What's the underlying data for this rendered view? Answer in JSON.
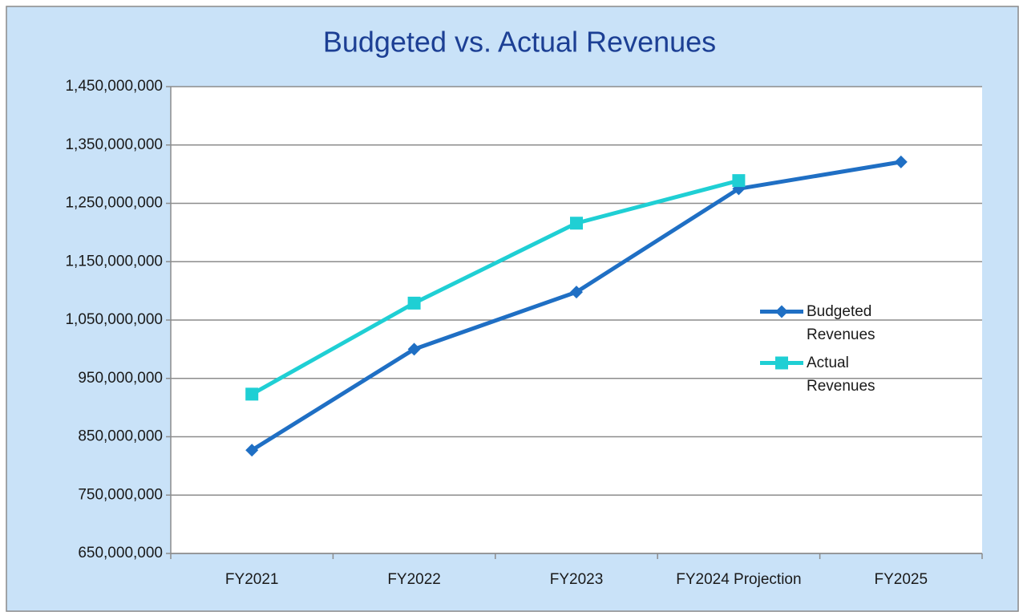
{
  "chart_data": {
    "type": "line",
    "title": "Budgeted vs. Actual Revenues",
    "categories": [
      "FY2021",
      "FY2022",
      "FY2023",
      "FY2024 Projection",
      "FY2025"
    ],
    "series": [
      {
        "name": "Budgeted Revenues",
        "color": "#1f6fc4",
        "marker": "diamond",
        "values": [
          827000000,
          1000000000,
          1098000000,
          1275000000,
          1321000000
        ]
      },
      {
        "name": "Actual Revenues",
        "color": "#1fcfd4",
        "marker": "square",
        "values": [
          923000000,
          1079000000,
          1216000000,
          1289000000,
          null
        ]
      }
    ],
    "ylim": [
      650000000,
      1450000000
    ],
    "yticks": [
      {
        "value": 650000000,
        "label": "650,000,000"
      },
      {
        "value": 750000000,
        "label": "750,000,000"
      },
      {
        "value": 850000000,
        "label": "850,000,000"
      },
      {
        "value": 950000000,
        "label": "950,000,000"
      },
      {
        "value": 1050000000,
        "label": "1,050,000,000"
      },
      {
        "value": 1150000000,
        "label": "1,150,000,000"
      },
      {
        "value": 1250000000,
        "label": "1,250,000,000"
      },
      {
        "value": 1350000000,
        "label": "1,350,000,000"
      },
      {
        "value": 1450000000,
        "label": "1,450,000,000"
      }
    ],
    "grid": true,
    "legend": "right"
  }
}
